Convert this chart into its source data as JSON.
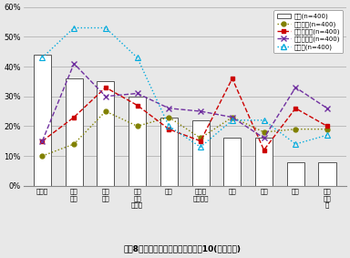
{
  "categories": [
    "屉こり",
    "目の\n疲れ",
    "運動\n不足",
    "体の\n疲れ\nやすさ",
    "眼痛",
    "不安・\nイライラ",
    "頭痛",
    "便秘",
    "不眠",
    "関節\nの痛\nみ"
  ],
  "tokyo_bars": [
    44,
    36,
    35,
    30,
    23,
    22,
    16,
    16,
    8,
    8
  ],
  "bangkok": [
    10,
    14,
    25,
    20,
    23,
    16,
    23,
    18,
    19,
    19
  ],
  "jakarta": [
    15,
    23,
    33,
    27,
    19,
    15,
    36,
    12,
    26,
    20
  ],
  "hochiminh": [
    15,
    41,
    30,
    31,
    26,
    25,
    23,
    16,
    33,
    26
  ],
  "seoul": [
    43,
    53,
    53,
    43,
    20,
    13,
    22,
    22,
    14,
    17
  ],
  "bar_color": "#ffffff",
  "bar_edgecolor": "#555555",
  "bangkok_color": "#808000",
  "jakarta_color": "#cc0000",
  "hochiminh_color": "#7030a0",
  "seoul_color": "#00aadd",
  "title": "図袆8　体調・症状の悩み　ベスト10(複数回答)",
  "legend_labels": [
    "東京(n=400)",
    "バンコク(n=400)",
    "ジャカルタ(n=400)",
    "ホーチミン(n=400)",
    "ソウル(n=400)"
  ],
  "ylim": [
    0,
    60
  ],
  "yticks": [
    0,
    10,
    20,
    30,
    40,
    50,
    60
  ],
  "ytick_labels": [
    "0%",
    "10%",
    "20%",
    "30%",
    "40%",
    "50%",
    "60%"
  ]
}
